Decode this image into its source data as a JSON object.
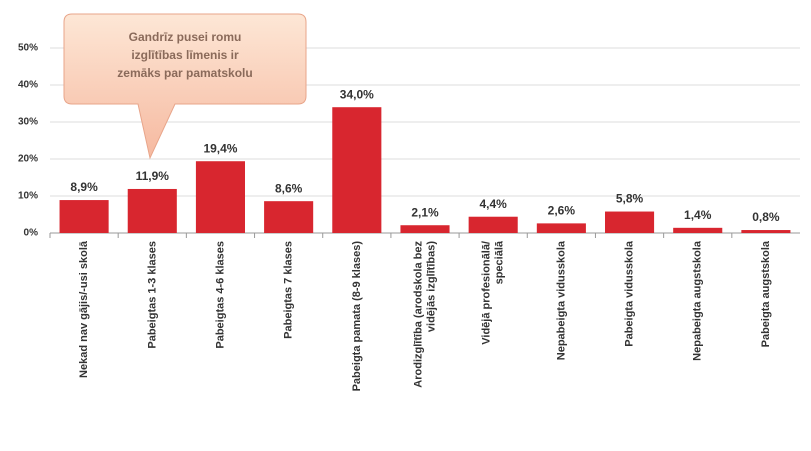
{
  "chart_data": {
    "type": "bar",
    "annotation": "Gandrīz pusei romu izglītības līmenis ir zemāks par pamatskolu",
    "categories": [
      "Nekad nav gājis/-usi skolā",
      "Pabeigtas 1-3 klases",
      "Pabeigtas 4-6 klases",
      "Pabeigtas 7 klases",
      "Pabeigta pamata (8-9 klases)",
      "Arodizglītība (arodskola bez vidējās izglītības)",
      "Vidējā profesionālā/ speciālā",
      "Nepabeigta vidusskola",
      "Pabeigta vidusskola",
      "Nepabeigta augstskola",
      "Pabeigta augstskola"
    ],
    "values": [
      8.9,
      11.9,
      19.4,
      8.6,
      34.0,
      2.1,
      4.4,
      2.6,
      5.8,
      1.4,
      0.8
    ],
    "value_labels": [
      "8,9%",
      "11,9%",
      "19,4%",
      "8,6%",
      "34,0%",
      "2,1%",
      "4,4%",
      "2,6%",
      "5,8%",
      "1,4%",
      "0,8%"
    ],
    "color": "#d8262f",
    "ylim": [
      0,
      50
    ],
    "yticks": [
      {
        "value": 0,
        "label": "0%"
      },
      {
        "value": 10,
        "label": "10%"
      },
      {
        "value": 20,
        "label": "20%"
      },
      {
        "value": 30,
        "label": "30%"
      },
      {
        "value": 40,
        "label": "40%"
      },
      {
        "value": 50,
        "label": "50%"
      }
    ],
    "grid": true
  }
}
